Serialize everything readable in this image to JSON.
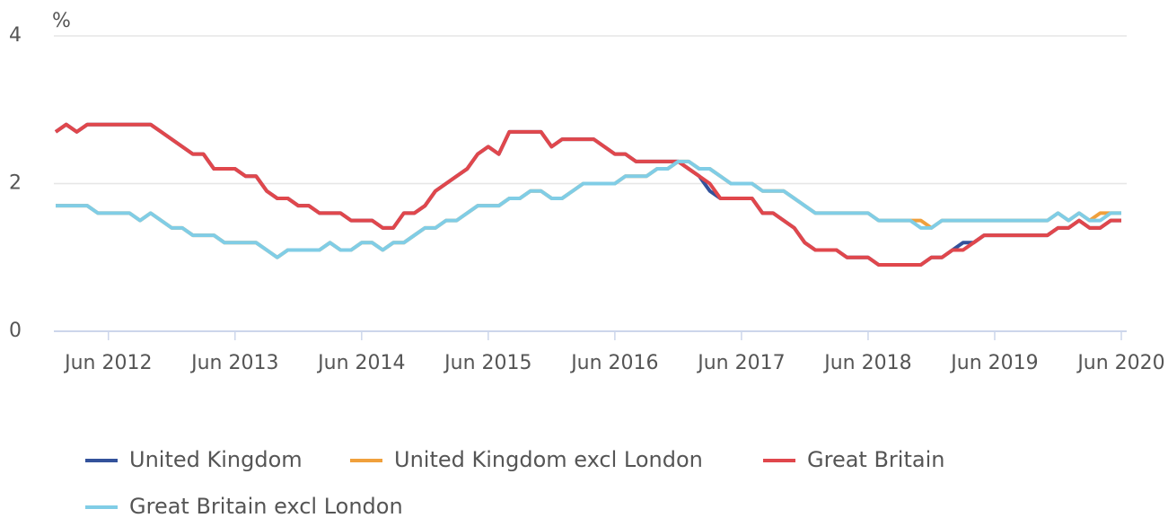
{
  "chart_data": {
    "type": "line",
    "y_unit": "%",
    "categories": [
      null,
      null,
      null,
      null,
      null,
      "Jun 2012",
      null,
      null,
      null,
      null,
      null,
      null,
      null,
      null,
      null,
      null,
      null,
      "Jun 2013",
      null,
      null,
      null,
      null,
      null,
      null,
      null,
      null,
      null,
      null,
      null,
      "Jun 2014",
      null,
      null,
      null,
      null,
      null,
      null,
      null,
      null,
      null,
      null,
      null,
      "Jun 2015",
      null,
      null,
      null,
      null,
      null,
      null,
      null,
      null,
      null,
      null,
      null,
      "Jun 2016",
      null,
      null,
      null,
      null,
      null,
      null,
      null,
      null,
      null,
      null,
      null,
      "Jun 2017",
      null,
      null,
      null,
      null,
      null,
      null,
      null,
      null,
      null,
      null,
      null,
      "Jun 2018",
      null,
      null,
      null,
      null,
      null,
      null,
      null,
      null,
      null,
      null,
      null,
      "Jun 2019",
      null,
      null,
      null,
      null,
      null,
      null,
      null,
      null,
      null,
      null,
      null,
      "Jun 2020"
    ],
    "series": [
      {
        "name": "United Kingdom",
        "color": "#33529b",
        "values": [
          2.7,
          2.8,
          2.7,
          2.8,
          2.8,
          2.8,
          2.8,
          2.8,
          2.8,
          2.8,
          2.7,
          2.6,
          2.5,
          2.4,
          2.4,
          2.2,
          2.2,
          2.2,
          2.1,
          2.1,
          1.9,
          1.8,
          1.8,
          1.7,
          1.7,
          1.6,
          1.6,
          1.6,
          1.5,
          1.5,
          1.5,
          1.4,
          1.4,
          1.6,
          1.6,
          1.7,
          1.9,
          2.0,
          2.1,
          2.2,
          2.4,
          2.5,
          2.4,
          2.7,
          2.7,
          2.7,
          2.7,
          2.5,
          2.6,
          2.6,
          2.6,
          2.6,
          2.5,
          2.4,
          2.4,
          2.3,
          2.3,
          2.3,
          2.3,
          2.3,
          2.2,
          2.1,
          1.9,
          1.8,
          1.8,
          1.8,
          1.8,
          1.6,
          1.6,
          1.5,
          1.4,
          1.2,
          1.1,
          1.1,
          1.1,
          1.0,
          1.0,
          1.0,
          0.9,
          0.9,
          0.9,
          0.9,
          0.9,
          1.0,
          1.0,
          1.1,
          1.2,
          1.2,
          1.3,
          1.3,
          1.3,
          1.3,
          1.3,
          1.3,
          1.3,
          1.4,
          1.4,
          1.5,
          1.4,
          1.4,
          1.5,
          1.5
        ]
      },
      {
        "name": "United Kingdom excl London",
        "color": "#f0a03c",
        "values": [
          1.7,
          1.7,
          1.7,
          1.7,
          1.6,
          1.6,
          1.6,
          1.6,
          1.5,
          1.6,
          1.5,
          1.4,
          1.4,
          1.3,
          1.3,
          1.3,
          1.2,
          1.2,
          1.2,
          1.2,
          1.1,
          1.0,
          1.1,
          1.1,
          1.1,
          1.1,
          1.2,
          1.1,
          1.1,
          1.2,
          1.2,
          1.1,
          1.2,
          1.2,
          1.3,
          1.4,
          1.4,
          1.5,
          1.5,
          1.6,
          1.7,
          1.7,
          1.7,
          1.8,
          1.8,
          1.9,
          1.9,
          1.8,
          1.8,
          1.9,
          2.0,
          2.0,
          2.0,
          2.0,
          2.1,
          2.1,
          2.1,
          2.2,
          2.2,
          2.3,
          2.3,
          2.2,
          2.2,
          2.1,
          2.0,
          2.0,
          2.0,
          1.9,
          1.9,
          1.9,
          1.8,
          1.7,
          1.6,
          1.6,
          1.6,
          1.6,
          1.6,
          1.6,
          1.5,
          1.5,
          1.5,
          1.5,
          1.5,
          1.4,
          1.5,
          1.5,
          1.5,
          1.5,
          1.5,
          1.5,
          1.5,
          1.5,
          1.5,
          1.5,
          1.5,
          1.6,
          1.5,
          1.6,
          1.5,
          1.6,
          1.6,
          1.6
        ]
      },
      {
        "name": "Great Britain",
        "color": "#e0474c",
        "values": [
          2.7,
          2.8,
          2.7,
          2.8,
          2.8,
          2.8,
          2.8,
          2.8,
          2.8,
          2.8,
          2.7,
          2.6,
          2.5,
          2.4,
          2.4,
          2.2,
          2.2,
          2.2,
          2.1,
          2.1,
          1.9,
          1.8,
          1.8,
          1.7,
          1.7,
          1.6,
          1.6,
          1.6,
          1.5,
          1.5,
          1.5,
          1.4,
          1.4,
          1.6,
          1.6,
          1.7,
          1.9,
          2.0,
          2.1,
          2.2,
          2.4,
          2.5,
          2.4,
          2.7,
          2.7,
          2.7,
          2.7,
          2.5,
          2.6,
          2.6,
          2.6,
          2.6,
          2.5,
          2.4,
          2.4,
          2.3,
          2.3,
          2.3,
          2.3,
          2.3,
          2.2,
          2.1,
          2.0,
          1.8,
          1.8,
          1.8,
          1.8,
          1.6,
          1.6,
          1.5,
          1.4,
          1.2,
          1.1,
          1.1,
          1.1,
          1.0,
          1.0,
          1.0,
          0.9,
          0.9,
          0.9,
          0.9,
          0.9,
          1.0,
          1.0,
          1.1,
          1.1,
          1.2,
          1.3,
          1.3,
          1.3,
          1.3,
          1.3,
          1.3,
          1.3,
          1.4,
          1.4,
          1.5,
          1.4,
          1.4,
          1.5,
          1.5
        ]
      },
      {
        "name": "Great Britain excl London",
        "color": "#80cde6",
        "values": [
          1.7,
          1.7,
          1.7,
          1.7,
          1.6,
          1.6,
          1.6,
          1.6,
          1.5,
          1.6,
          1.5,
          1.4,
          1.4,
          1.3,
          1.3,
          1.3,
          1.2,
          1.2,
          1.2,
          1.2,
          1.1,
          1.0,
          1.1,
          1.1,
          1.1,
          1.1,
          1.2,
          1.1,
          1.1,
          1.2,
          1.2,
          1.1,
          1.2,
          1.2,
          1.3,
          1.4,
          1.4,
          1.5,
          1.5,
          1.6,
          1.7,
          1.7,
          1.7,
          1.8,
          1.8,
          1.9,
          1.9,
          1.8,
          1.8,
          1.9,
          2.0,
          2.0,
          2.0,
          2.0,
          2.1,
          2.1,
          2.1,
          2.2,
          2.2,
          2.3,
          2.3,
          2.2,
          2.2,
          2.1,
          2.0,
          2.0,
          2.0,
          1.9,
          1.9,
          1.9,
          1.8,
          1.7,
          1.6,
          1.6,
          1.6,
          1.6,
          1.6,
          1.6,
          1.5,
          1.5,
          1.5,
          1.5,
          1.4,
          1.4,
          1.5,
          1.5,
          1.5,
          1.5,
          1.5,
          1.5,
          1.5,
          1.5,
          1.5,
          1.5,
          1.5,
          1.6,
          1.5,
          1.6,
          1.5,
          1.5,
          1.6,
          1.6
        ]
      }
    ],
    "ylim": [
      0,
      4
    ],
    "yticks": [
      0,
      2,
      4
    ],
    "grid": true,
    "legend": "bottom"
  }
}
